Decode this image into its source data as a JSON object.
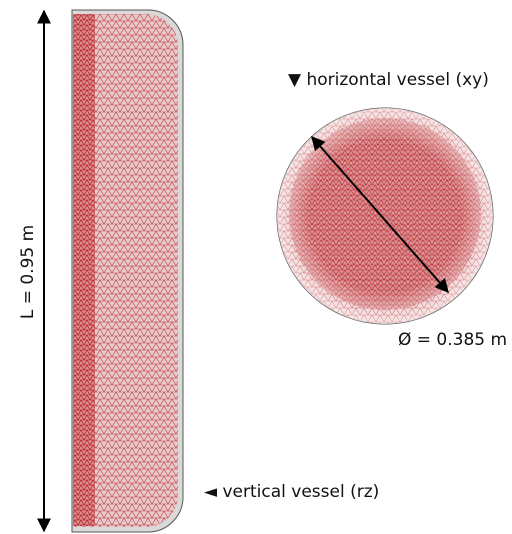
{
  "labels": {
    "length": "L = 0.95 m",
    "horizontal": "▼ horizontal vessel (xy)",
    "diameter": "Ø = 0.385 m",
    "vertical": "◄ vertical vessel (rz)"
  }
}
